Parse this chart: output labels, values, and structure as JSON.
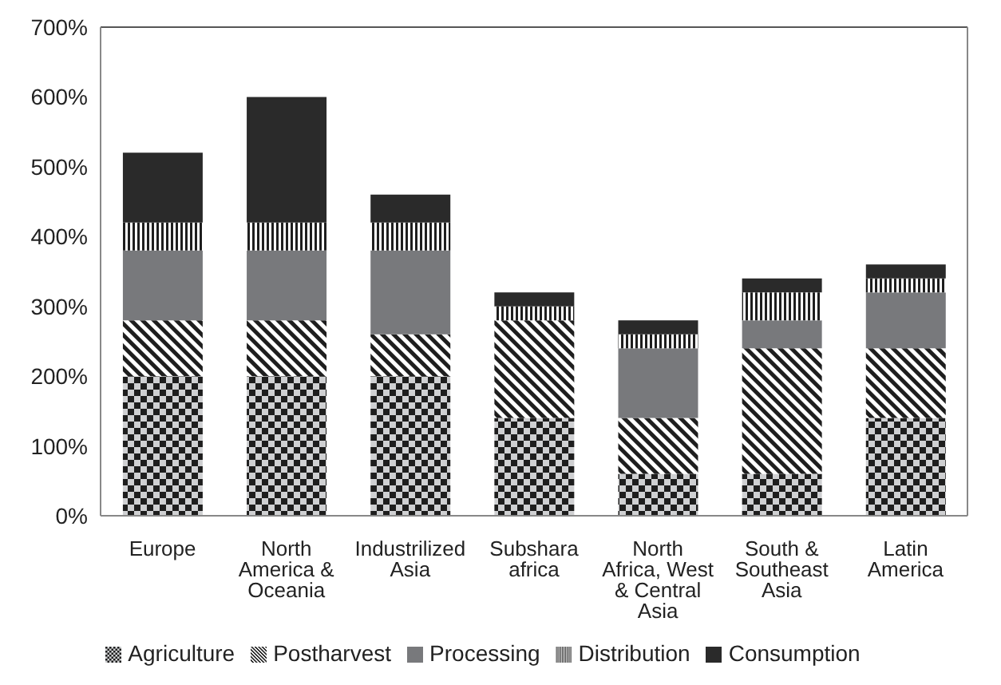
{
  "chart_data": {
    "type": "bar",
    "stacked": true,
    "categories": [
      "Europe",
      "North America & Oceania",
      "Industrilized Asia",
      "Subshara africa",
      "North Africa, West & Central Asia",
      "South & Southeast Asia",
      "Latin America"
    ],
    "series": [
      {
        "name": "Agriculture",
        "color": "#1e1e1e",
        "values": [
          200,
          200,
          200,
          140,
          60,
          60,
          140
        ]
      },
      {
        "name": "Postharvest",
        "color": "#1e1e1e",
        "values": [
          80,
          80,
          60,
          140,
          80,
          180,
          100
        ]
      },
      {
        "name": "Processing",
        "color": "#78797c",
        "values": [
          100,
          100,
          120,
          0,
          100,
          40,
          80
        ]
      },
      {
        "name": "Distribution",
        "color": "#1e1e1e",
        "values": [
          40,
          40,
          40,
          20,
          20,
          40,
          20
        ]
      },
      {
        "name": "Consumption",
        "color": "#2a2a2a",
        "values": [
          100,
          180,
          40,
          20,
          20,
          20,
          20
        ]
      }
    ],
    "ylim": [
      0,
      700
    ],
    "yticks": [
      {
        "value": 0,
        "label": "0%"
      },
      {
        "value": 100,
        "label": "100%"
      },
      {
        "value": 200,
        "label": "200%"
      },
      {
        "value": 300,
        "label": "300%"
      },
      {
        "value": 400,
        "label": "400%"
      },
      {
        "value": 500,
        "label": "500%"
      },
      {
        "value": 600,
        "label": "600%"
      },
      {
        "value": 700,
        "label": "700%"
      }
    ],
    "grid": false,
    "legend": "bottom"
  }
}
